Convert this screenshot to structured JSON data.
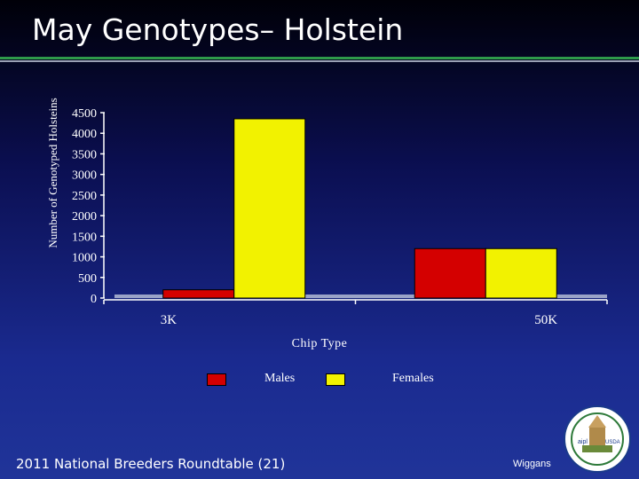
{
  "slide": {
    "title": "May Genotypes– Holstein",
    "footer": "2011 National Breeders Roundtable (21)",
    "author": "Wiggans"
  },
  "colors": {
    "males": "#d40000",
    "females": "#f2f200",
    "title_rule": "#2e9a4a"
  },
  "chart_data": {
    "type": "bar",
    "title": "",
    "xlabel": "Chip Type",
    "ylabel": "Number of Genotyped Holsteins",
    "categories": [
      "3K",
      "50K"
    ],
    "series": [
      {
        "name": "Males",
        "values": [
          200,
          1200
        ]
      },
      {
        "name": "Females",
        "values": [
          4350,
          1200
        ]
      }
    ],
    "ylim": [
      0,
      4500
    ],
    "yticks": [
      "0",
      "500",
      "1000",
      "1500",
      "2000",
      "2500",
      "3000",
      "3500",
      "4000",
      "4500"
    ],
    "grid": false,
    "legend": "bottom"
  },
  "seal": {
    "icon": "seal-logo-icon",
    "text_left": "aipl",
    "text_right": "USDA"
  }
}
